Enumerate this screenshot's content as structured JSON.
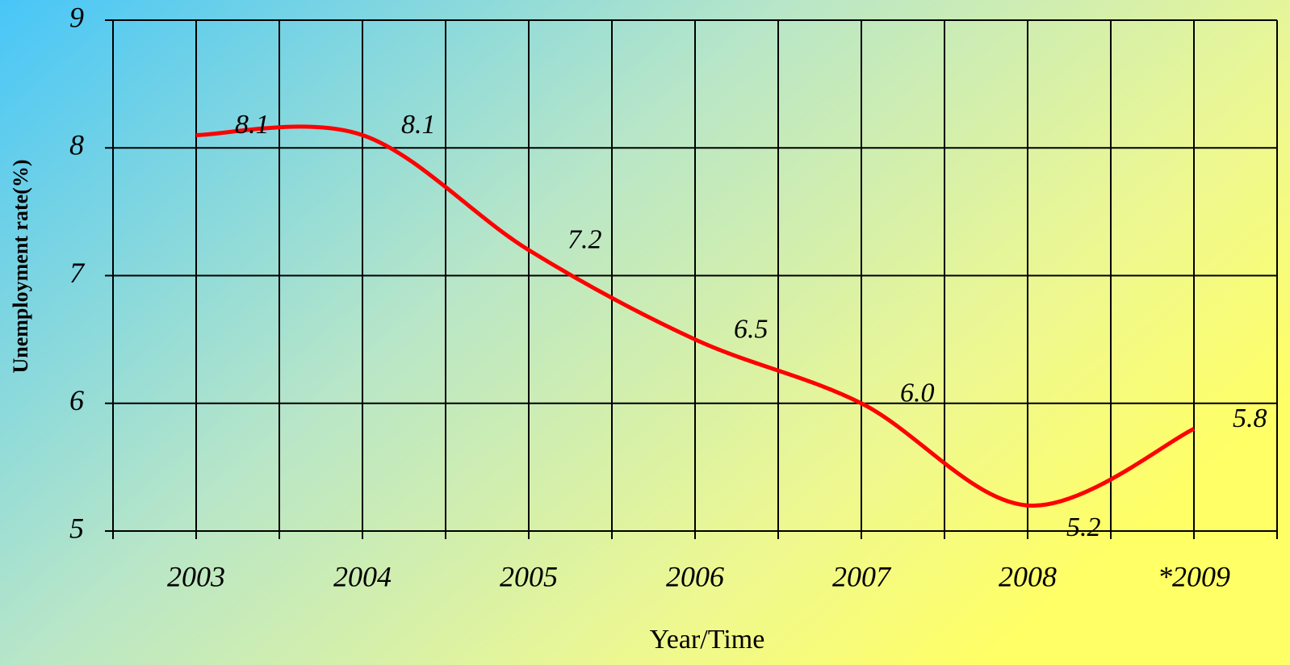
{
  "chart_data": {
    "type": "line",
    "xlabel": "Year/Time",
    "ylabel": "Unemployment rate(%)",
    "categories": [
      "2003",
      "2004",
      "2005",
      "2006",
      "2007",
      "2008",
      "*2009"
    ],
    "series": [
      {
        "name": "Unemployment rate",
        "color": "#ff0000",
        "values": [
          8.1,
          8.1,
          7.2,
          6.5,
          6.0,
          5.2,
          5.8
        ],
        "value_labels": [
          "8.1",
          "8.1",
          "7.2",
          "6.5",
          "6.0",
          "5.2",
          "5.8"
        ]
      }
    ],
    "ylim": [
      5,
      9
    ],
    "yticks": [
      5,
      6,
      7,
      8,
      9
    ],
    "grid": true
  }
}
